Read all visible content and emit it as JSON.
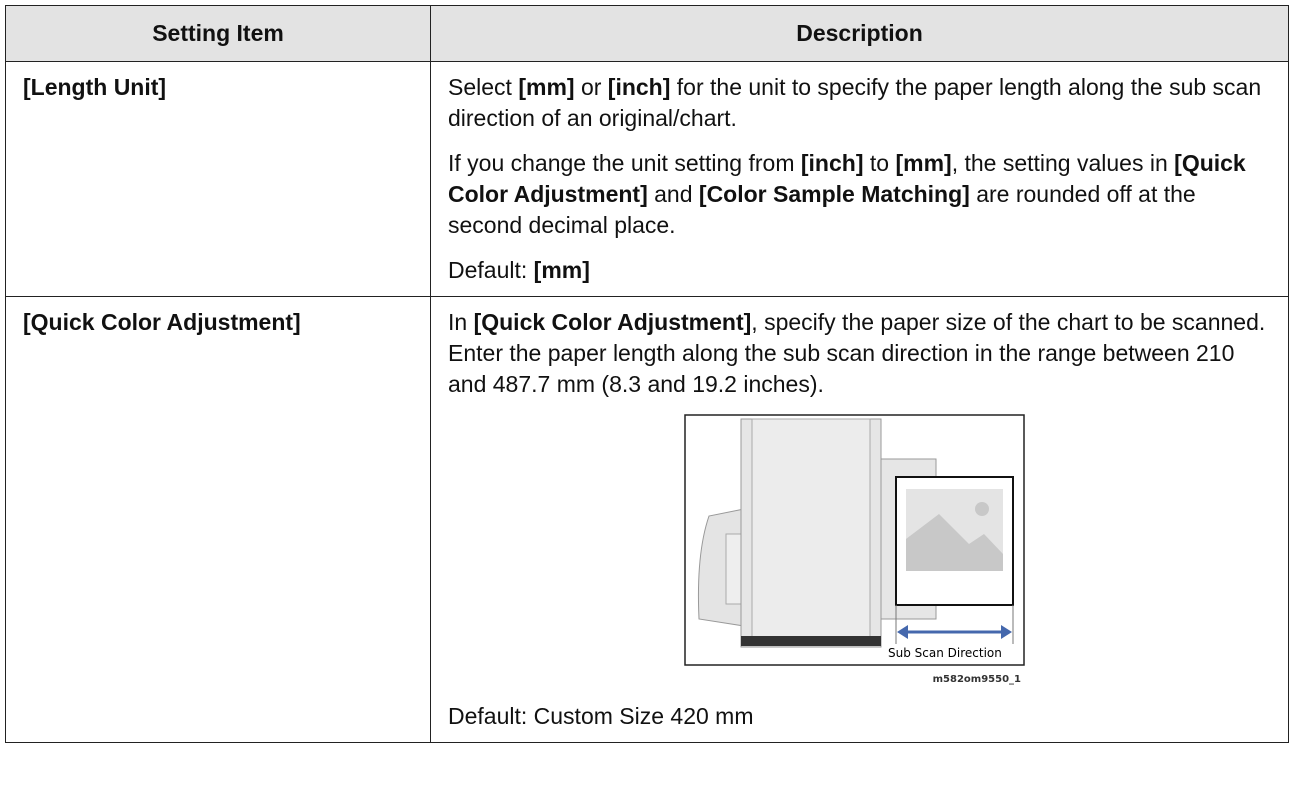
{
  "table": {
    "header": [
      "Setting Item",
      "Description"
    ],
    "rows": [
      {
        "item": "[Length Unit]",
        "content": [
          {
            "runs": [
              {
                "text": "Select "
              },
              {
                "text": "[mm]",
                "bold": true
              },
              {
                "text": " or "
              },
              {
                "text": "[inch]",
                "bold": true
              },
              {
                "text": " for the unit to specify the paper length along the sub scan direction of an original/chart."
              }
            ]
          },
          {
            "runs": [
              {
                "text": "If you change the unit setting from "
              },
              {
                "text": "[inch]",
                "bold": true
              },
              {
                "text": " to "
              },
              {
                "text": "[mm]",
                "bold": true
              },
              {
                "text": ", the setting values in "
              },
              {
                "text": "[Quick Color Adjustment]",
                "bold": true
              },
              {
                "text": " and "
              },
              {
                "text": "[Color Sample Matching]",
                "bold": true
              },
              {
                "text": " are rounded off at the second decimal place."
              }
            ]
          },
          {
            "runs": [
              {
                "text": "Default: "
              },
              {
                "text": "[mm]",
                "bold": true
              }
            ]
          }
        ]
      },
      {
        "item": "[Quick Color Adjustment]",
        "content": [
          {
            "runs": [
              {
                "text": "In "
              },
              {
                "text": "[Quick Color Adjustment]",
                "bold": true
              },
              {
                "text": ", specify the paper size of the chart to be scanned. Enter the paper length along the sub scan direction in the range between 210 and 487.7 mm (8.3 and 19.2 inches)."
              }
            ]
          },
          {
            "figure_label": "Sub Scan Direction",
            "figure_id": "m582om9550_1"
          },
          {
            "runs": [
              {
                "text": "Default: Custom Size 420 mm"
              }
            ]
          }
        ]
      }
    ]
  }
}
